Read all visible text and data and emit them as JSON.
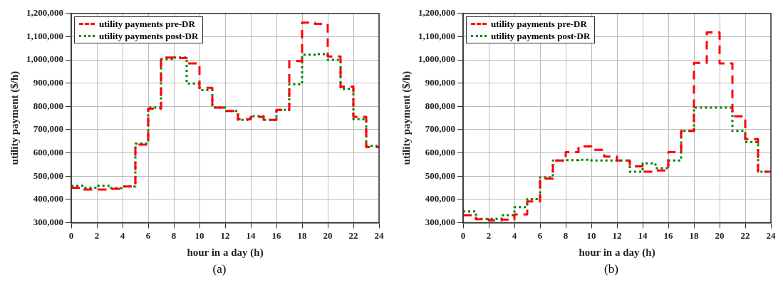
{
  "chart_data": [
    {
      "type": "step",
      "xlabel": "hour in a day (h)",
      "ylabel": "utility payment ($/h)",
      "annotations": [
        "(a)"
      ],
      "x": [
        0,
        1,
        2,
        3,
        4,
        5,
        6,
        7,
        8,
        9,
        10,
        11,
        12,
        13,
        14,
        15,
        16,
        17,
        18,
        19,
        20,
        21,
        22,
        23,
        24
      ],
      "series": [
        {
          "name": "utility payments pre-DR",
          "color": "#ff0000",
          "line_style": "dashed",
          "values": [
            450000,
            442000,
            442000,
            445000,
            455000,
            635000,
            790000,
            1010000,
            1008000,
            985000,
            880000,
            795000,
            780000,
            745000,
            755000,
            742000,
            785000,
            995000,
            1160000,
            1155000,
            1015000,
            885000,
            755000,
            625000,
            625000
          ]
        },
        {
          "name": "utility payments post-DR",
          "color": "#008000",
          "line_style": "dotted",
          "values": [
            458000,
            450000,
            458000,
            448000,
            455000,
            640000,
            795000,
            1003000,
            1010000,
            898000,
            870000,
            795000,
            780000,
            742000,
            758000,
            742000,
            785000,
            895000,
            1022000,
            1025000,
            1000000,
            875000,
            745000,
            630000,
            630000
          ]
        }
      ],
      "xlim": [
        0,
        24
      ],
      "xticks": [
        0,
        2,
        4,
        6,
        8,
        10,
        12,
        14,
        16,
        18,
        20,
        22,
        24
      ],
      "ylim": [
        300000,
        1200000
      ],
      "yticks": [
        {
          "value": 300000,
          "label": "300,000"
        },
        {
          "value": 400000,
          "label": "400,000"
        },
        {
          "value": 500000,
          "label": "500,000"
        },
        {
          "value": 600000,
          "label": "600,000"
        },
        {
          "value": 700000,
          "label": "700,000"
        },
        {
          "value": 800000,
          "label": "800,000"
        },
        {
          "value": 900000,
          "label": "900,000"
        },
        {
          "value": 1000000,
          "label": "1,000,000"
        },
        {
          "value": 1100000,
          "label": "1,100,000"
        },
        {
          "value": 1200000,
          "label": "1,200,000"
        }
      ],
      "grid": true,
      "legend": "top left"
    },
    {
      "type": "step",
      "xlabel": "hour in a day (h)",
      "ylabel": "utility payment ($/h)",
      "annotations": [
        "(b)"
      ],
      "x": [
        0,
        1,
        2,
        3,
        4,
        5,
        6,
        7,
        8,
        9,
        10,
        11,
        12,
        13,
        14,
        15,
        16,
        17,
        18,
        19,
        20,
        21,
        22,
        23,
        24
      ],
      "series": [
        {
          "name": "utility payments pre-DR",
          "color": "#ff0000",
          "line_style": "dashed",
          "values": [
            332000,
            314000,
            310000,
            313000,
            335000,
            391000,
            489000,
            567000,
            603000,
            628000,
            613000,
            584000,
            567000,
            542000,
            519000,
            524000,
            603000,
            694000,
            987000,
            1118000,
            985000,
            757000,
            659000,
            519000,
            519000
          ]
        },
        {
          "name": "utility payments post-DR",
          "color": "#008000",
          "line_style": "dotted",
          "values": [
            348000,
            316000,
            316000,
            332000,
            366000,
            401000,
            494000,
            567000,
            569000,
            570000,
            567000,
            567000,
            567000,
            519000,
            555000,
            534000,
            567000,
            694000,
            795000,
            795000,
            795000,
            694000,
            647000,
            519000,
            519000
          ]
        }
      ],
      "xlim": [
        0,
        24
      ],
      "xticks": [
        0,
        2,
        4,
        6,
        8,
        10,
        12,
        14,
        16,
        18,
        20,
        22,
        24
      ],
      "ylim": [
        300000,
        1200000
      ],
      "yticks": [
        {
          "value": 300000,
          "label": "300,000"
        },
        {
          "value": 400000,
          "label": "400,000"
        },
        {
          "value": 500000,
          "label": "500,000"
        },
        {
          "value": 600000,
          "label": "600,000"
        },
        {
          "value": 700000,
          "label": "700,000"
        },
        {
          "value": 800000,
          "label": "800,000"
        },
        {
          "value": 900000,
          "label": "900,000"
        },
        {
          "value": 1000000,
          "label": "1,000,000"
        },
        {
          "value": 1100000,
          "label": "1,100,000"
        },
        {
          "value": 1200000,
          "label": "1,200,000"
        }
      ],
      "grid": true,
      "legend": "top left"
    }
  ]
}
